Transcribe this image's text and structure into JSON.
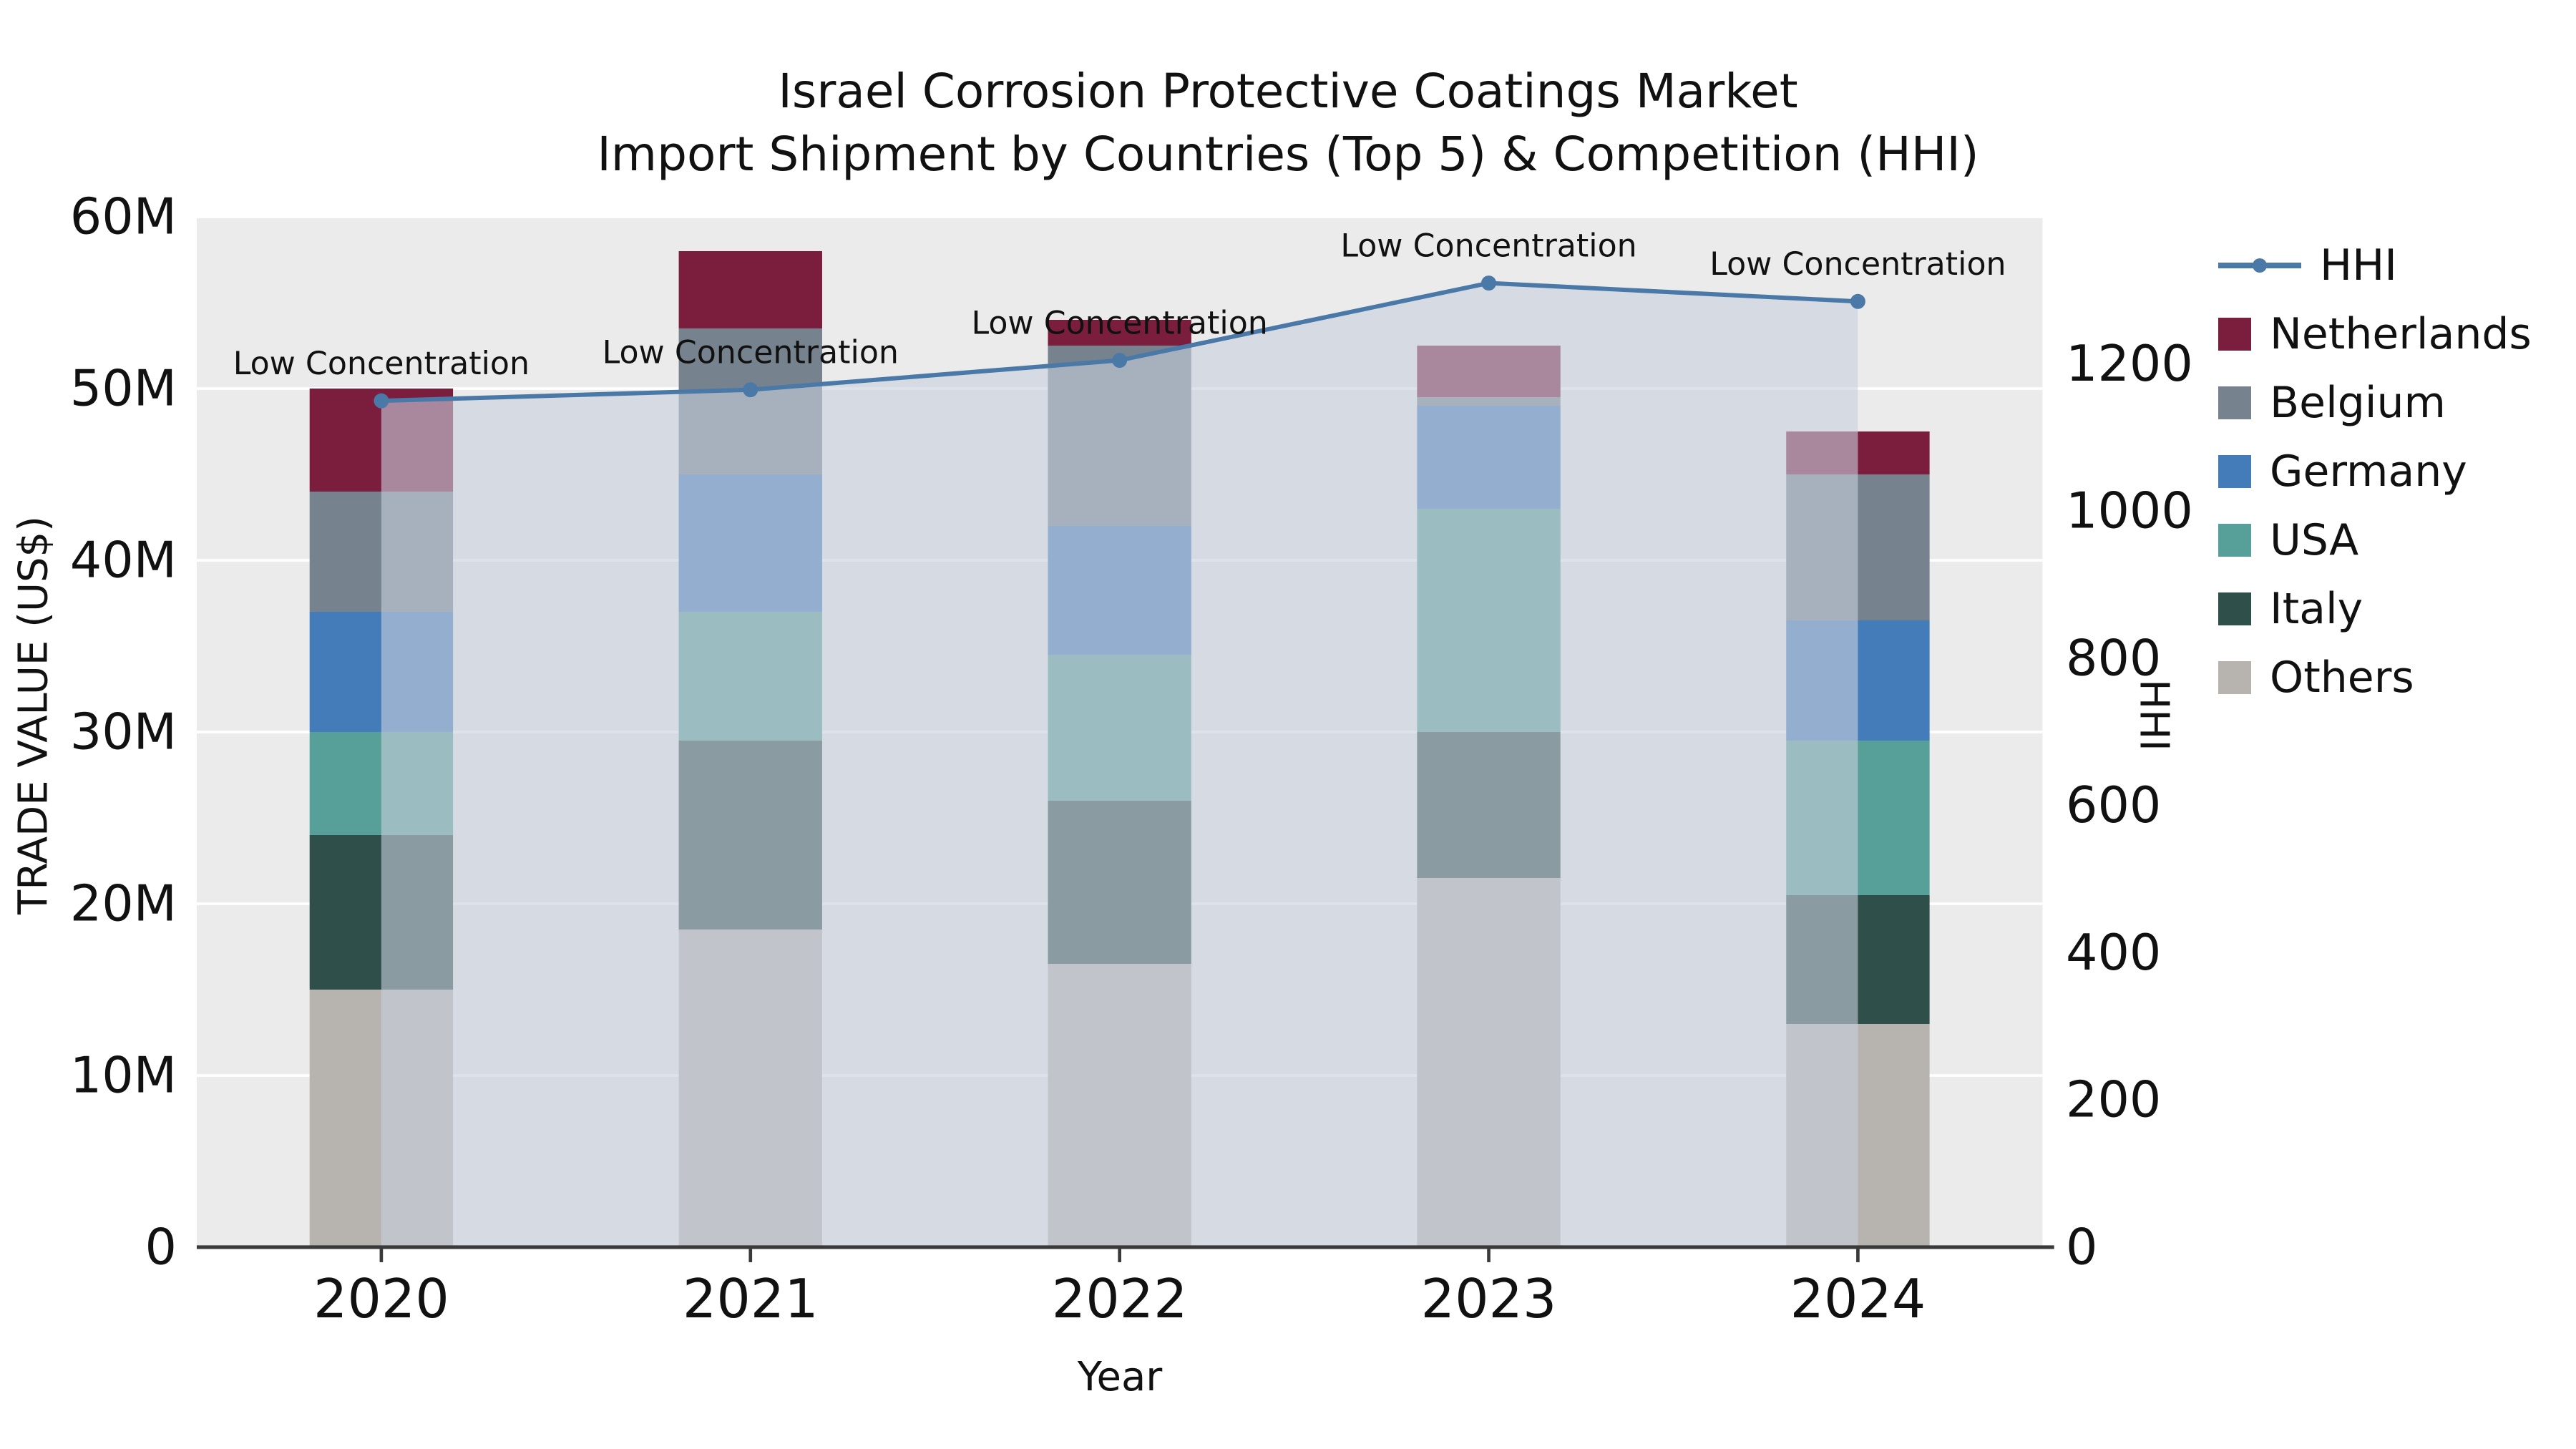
{
  "title": {
    "line1": "Israel Corrosion Protective Coatings Market",
    "line2": "Import Shipment by Countries (Top 5) & Competition (HHI)"
  },
  "axis_titles": {
    "y_left": "TRADE VALUE (US$)",
    "y_right": "HHI",
    "x": "Year"
  },
  "chart_data": {
    "type": "bar",
    "subtype": "stacked-bars-with-hhi-line-and-area",
    "categories": [
      "2020",
      "2021",
      "2022",
      "2023",
      "2024"
    ],
    "bar_unit": "million US$ (left axis, TRADE VALUE)",
    "bar_series": [
      {
        "name": "Others",
        "color": "#b7b3ae",
        "values": [
          15.0,
          18.5,
          16.5,
          21.5,
          13.0
        ]
      },
      {
        "name": "Italy",
        "color": "#2f4f4a",
        "values": [
          9.0,
          11.0,
          9.5,
          8.5,
          7.5
        ]
      },
      {
        "name": "USA",
        "color": "#57a099",
        "values": [
          6.0,
          7.5,
          8.5,
          13.0,
          9.0
        ]
      },
      {
        "name": "Germany",
        "color": "#447cba",
        "values": [
          7.0,
          8.0,
          7.5,
          6.0,
          7.0
        ]
      },
      {
        "name": "Belgium",
        "color": "#77828f",
        "values": [
          7.0,
          8.5,
          10.5,
          0.5,
          8.5
        ]
      },
      {
        "name": "Netherlands",
        "color": "#7b1d3d",
        "values": [
          6.0,
          4.5,
          1.5,
          3.0,
          2.5
        ]
      }
    ],
    "bar_totals": [
      50.0,
      58.0,
      54.0,
      52.5,
      47.5
    ],
    "line_series": {
      "name": "HHI",
      "axis": "right",
      "color": "#4a79a8",
      "marker": true,
      "values": [
        1150,
        1165,
        1205,
        1310,
        1285
      ],
      "area_fill": "rgba(200,209,222,0.6)"
    },
    "point_annotations": [
      "Low Concentration",
      "Low Concentration",
      "Low Concentration",
      "Low Concentration",
      "Low Concentration"
    ],
    "y_left": {
      "max": 60,
      "ticks": [
        {
          "v": 0,
          "label": "0"
        },
        {
          "v": 10,
          "label": "10M"
        },
        {
          "v": 20,
          "label": "20M"
        },
        {
          "v": 30,
          "label": "30M"
        },
        {
          "v": 40,
          "label": "40M"
        },
        {
          "v": 50,
          "label": "50M"
        },
        {
          "v": 60,
          "label": "60M"
        }
      ]
    },
    "y_right": {
      "max": 1400,
      "ticks": [
        {
          "v": 0,
          "label": "0"
        },
        {
          "v": 200,
          "label": "200"
        },
        {
          "v": 400,
          "label": "400"
        },
        {
          "v": 600,
          "label": "600"
        },
        {
          "v": 800,
          "label": "800"
        },
        {
          "v": 1000,
          "label": "1000"
        },
        {
          "v": 1200,
          "label": "1200"
        }
      ]
    },
    "legend_order": [
      "HHI",
      "Netherlands",
      "Belgium",
      "Germany",
      "USA",
      "Italy",
      "Others"
    ],
    "legend_position": "right",
    "grid": "horizontal-only",
    "colors": {
      "plot_bg": "#ebebeb",
      "grid": "#ffffff",
      "axis_line": "#3a3a3a",
      "text": "#111111"
    }
  }
}
